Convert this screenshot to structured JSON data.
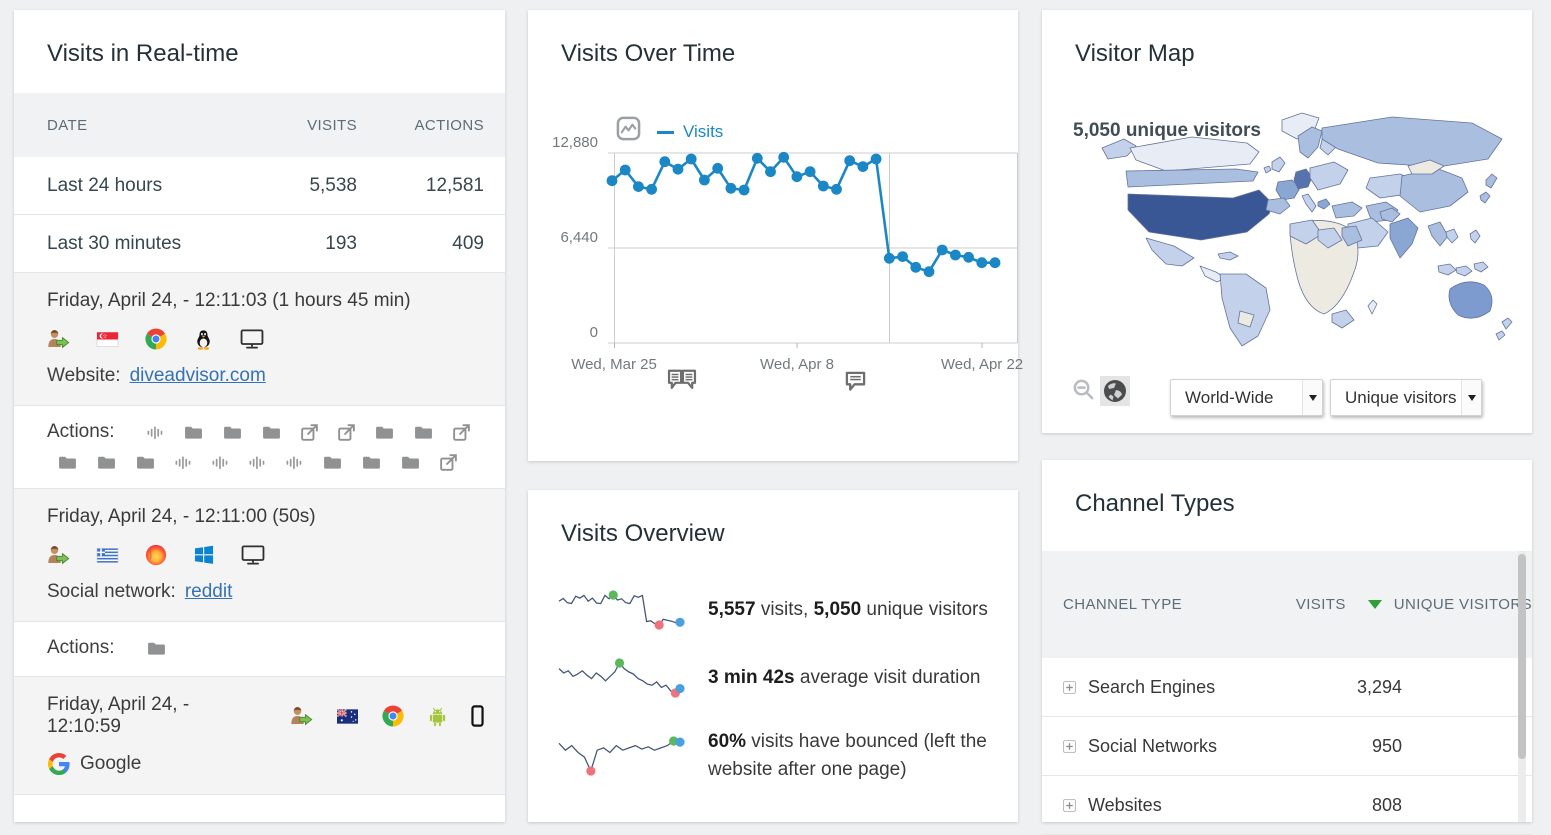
{
  "colors": {
    "line_blue": "#1b87c5",
    "link": "#3572b5",
    "spark_line": "#46597a",
    "spark_max": "#5cb85c",
    "spark_min": "#f0737c",
    "spark_last": "#4aa0dc",
    "grid": "#cccccc",
    "sort_green": "#2e9e36",
    "map_high": "#3a5795",
    "map_high2": "#5673ae",
    "map_mid": "#7d9bce",
    "map_mid2": "#8aa6d3",
    "map_light": "#c3d2ea",
    "map_light2": "#aabfe0",
    "map_pale": "#e8ecf4",
    "map_none": "#edeae1"
  },
  "realtime": {
    "title": "Visits in Real-time",
    "columns": {
      "date": "DATE",
      "visits": "VISITS",
      "actions": "ACTIONS"
    },
    "summary_rows": [
      {
        "date": "Last 24 hours",
        "visits": "5,538",
        "actions": "12,581"
      },
      {
        "date": "Last 30 minutes",
        "visits": "193",
        "actions": "409"
      }
    ],
    "visits": [
      {
        "datetime": "Friday, April 24, - 12:11:03 (1 hours 45 min)",
        "inline_icons": false,
        "icons": [
          "visitor-returning",
          "flag-singapore",
          "browser-chrome",
          "os-linux",
          "device-desktop"
        ],
        "referrer": {
          "label": "Website:",
          "link": "diveadvisor.com"
        },
        "actions_label": "Actions:",
        "action_icons_row1": [
          "pageviews",
          "folder",
          "folder",
          "folder",
          "outlink",
          "outlink",
          "folder",
          "folder",
          "outlink"
        ],
        "action_icons_row2": [
          "folder",
          "folder",
          "folder",
          "pageviews",
          "pageviews",
          "pageviews",
          "pageviews",
          "folder",
          "folder",
          "folder",
          "outlink"
        ]
      },
      {
        "datetime": "Friday, April 24, - 12:11:00 (50s)",
        "inline_icons": false,
        "icons": [
          "visitor-returning",
          "flag-greece",
          "browser-firefox",
          "os-windows",
          "device-desktop"
        ],
        "referrer": {
          "label": "Social network:",
          "link": "reddit"
        },
        "actions_label": "Actions:",
        "action_icons_row1": [
          "folder"
        ],
        "action_icons_row2": []
      },
      {
        "datetime": "Friday, April 24, - 12:10:59",
        "inline_icons": true,
        "icons": [
          "visitor-returning",
          "flag-australia",
          "browser-chrome",
          "os-android",
          "device-smartphone"
        ],
        "referrer": {
          "label": "",
          "brand_icon": "google-logo",
          "text": "Google"
        }
      }
    ]
  },
  "visits_over_time": {
    "title": "Visits Over Time",
    "legend": "Visits",
    "chart_data": {
      "type": "line",
      "series": [
        {
          "name": "Visits",
          "values": [
            11000,
            11730,
            10600,
            10420,
            12290,
            11780,
            12475,
            11050,
            11840,
            10490,
            10370,
            12520,
            11615,
            12590,
            11275,
            11615,
            10645,
            10420,
            12360,
            11955,
            12475,
            5740,
            5855,
            5130,
            4835,
            6305,
            5965,
            5810,
            5445,
            5445
          ]
        }
      ],
      "x_labels": [
        "Wed, Mar 25",
        "Wed, Apr 8",
        "Wed, Apr 22"
      ],
      "y_ticks": [
        "12,880",
        "6,440",
        "0"
      ],
      "ylim": [
        0,
        12880
      ],
      "grid": true,
      "legend_position": "top-left"
    }
  },
  "visits_overview": {
    "title": "Visits Overview",
    "rows": [
      {
        "segments": [
          {
            "text": "5,557",
            "bold": true
          },
          {
            "text": " visits, ",
            "bold": false
          },
          {
            "text": "5,050",
            "bold": true
          },
          {
            "text": " unique visitors",
            "bold": false
          }
        ],
        "sparkline": [
          110,
          117,
          106,
          104,
          123,
          118,
          125,
          110,
          118,
          105,
          104,
          125,
          116,
          126,
          113,
          116,
          106,
          104,
          124,
          120,
          125,
          57,
          59,
          51,
          48,
          63,
          60,
          58,
          54,
          55
        ]
      },
      {
        "segments": [
          {
            "text": "3 min 42s",
            "bold": true
          },
          {
            "text": " average visit duration",
            "bold": false
          }
        ],
        "sparkline": [
          3.8,
          3.72,
          3.76,
          3.66,
          3.7,
          3.76,
          3.68,
          3.62,
          3.72,
          3.66,
          3.58,
          3.66,
          3.74,
          3.9,
          3.8,
          3.74,
          3.7,
          3.62,
          3.58,
          3.52,
          3.5,
          3.56,
          3.46,
          3.5,
          3.4,
          3.36,
          3.44
        ]
      },
      {
        "segments": [
          {
            "text": "60%",
            "bold": true
          },
          {
            "text": " visits have bounced (left the website after one page)",
            "bold": false
          }
        ],
        "sparkline": [
          60.2,
          59.9,
          60.1,
          59.8,
          59.6,
          59.0,
          59.9,
          60.0,
          59.8,
          60.1,
          59.9,
          60.0,
          60.1,
          59.95,
          60.05,
          59.9,
          60.0,
          60.1,
          60.3,
          60.25
        ]
      }
    ]
  },
  "visitor_map": {
    "title": "Visitor Map",
    "overlay": "5,050 unique visitors",
    "region_select": "World-Wide",
    "metric_select": "Unique visitors"
  },
  "channel_types": {
    "title": "Channel Types",
    "columns": {
      "type": "CHANNEL TYPE",
      "visits": "VISITS",
      "unique": "UNIQUE VISITORS"
    },
    "rows": [
      {
        "label": "Search Engines",
        "visits": "3,294"
      },
      {
        "label": "Social Networks",
        "visits": "950"
      },
      {
        "label": "Websites",
        "visits": "808"
      }
    ]
  }
}
